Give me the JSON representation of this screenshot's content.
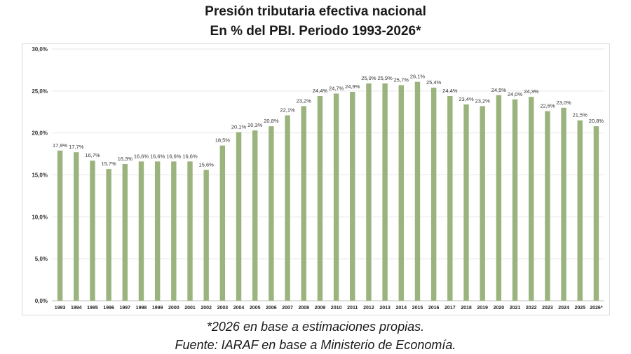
{
  "chart_data": {
    "type": "bar",
    "title": "Presión tributaria efectiva nacional",
    "subtitle": "En % del PBI. Periodo 1993-2026*",
    "categories": [
      "1993",
      "1994",
      "1995",
      "1996",
      "1997",
      "1998",
      "1999",
      "2000",
      "2001",
      "2002",
      "2003",
      "2004",
      "2005",
      "2006",
      "2007",
      "2008",
      "2009",
      "2010",
      "2011",
      "2012",
      "2013",
      "2014",
      "2015",
      "2016",
      "2017",
      "2018",
      "2019",
      "2020",
      "2021",
      "2022",
      "2023",
      "2024",
      "2025",
      "2026*"
    ],
    "values": [
      17.9,
      17.7,
      16.7,
      15.7,
      16.3,
      16.6,
      16.6,
      16.6,
      16.6,
      15.6,
      18.5,
      20.1,
      20.3,
      20.8,
      22.1,
      23.2,
      24.4,
      24.7,
      24.9,
      25.9,
      25.9,
      25.7,
      26.1,
      25.4,
      24.4,
      23.4,
      23.2,
      24.5,
      24.0,
      24.3,
      22.6,
      23.0,
      21.5,
      20.8
    ],
    "data_labels": [
      "17,9%",
      "17,7%",
      "16,7%",
      "15,7%",
      "16,3%",
      "16,6%",
      "16,6%",
      "16,6%",
      "16,6%",
      "15,6%",
      "18,5%",
      "20,1%",
      "20,3%",
      "20,8%",
      "22,1%",
      "23,2%",
      "24,4%",
      "24,7%",
      "24,9%",
      "25,9%",
      "25,9%",
      "25,7%",
      "26,1%",
      "25,4%",
      "24,4%",
      "23,4%",
      "23,2%",
      "24,5%",
      "24,0%",
      "24,3%",
      "22,6%",
      "23,0%",
      "21,5%",
      "20,8%"
    ],
    "y_ticks": [
      0,
      5,
      10,
      15,
      20,
      25,
      30
    ],
    "y_tick_labels": [
      "0,0%",
      "5,0%",
      "10,0%",
      "15,0%",
      "20,0%",
      "25,0%",
      "30,0%"
    ],
    "ylim": [
      0,
      30
    ],
    "grid": true,
    "legend": "none",
    "bar_color": "#9bb47d",
    "xlabel": "",
    "ylabel": ""
  },
  "footnotes": {
    "estimate": "*2026 en base a estimaciones propias.",
    "source": "Fuente: IARAF en base a Ministerio de Economía."
  }
}
